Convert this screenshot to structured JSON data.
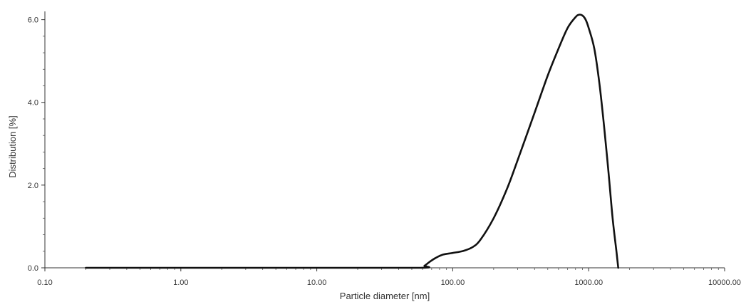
{
  "chart_data": {
    "type": "line",
    "title": "",
    "xlabel": "Particle diameter [nm]",
    "ylabel": "Distribution [%]",
    "x_scale": "log",
    "xlim": [
      0.1,
      10000
    ],
    "ylim": [
      0,
      6.2
    ],
    "x_ticks": [
      {
        "value": 0.1,
        "label": "0.10"
      },
      {
        "value": 1,
        "label": "1.00"
      },
      {
        "value": 10,
        "label": "10.00"
      },
      {
        "value": 100,
        "label": "100.00"
      },
      {
        "value": 1000,
        "label": "1000.00"
      },
      {
        "value": 10000,
        "label": "10000.00"
      }
    ],
    "y_ticks": [
      {
        "value": 0,
        "label": "0.0"
      },
      {
        "value": 2,
        "label": "2.0"
      },
      {
        "value": 4,
        "label": "4.0"
      },
      {
        "value": 6,
        "label": "6.0"
      }
    ],
    "grid": false,
    "legend": "none",
    "series": [
      {
        "color": "#111111",
        "x": [
          0.2,
          1,
          10,
          58,
          62,
          68,
          75,
          85,
          100,
          120,
          140,
          160,
          200,
          250,
          300,
          400,
          500,
          600,
          700,
          800,
          850,
          900,
          950,
          1000,
          1100,
          1200,
          1300,
          1400,
          1500,
          1600,
          1650
        ],
        "y": [
          0,
          0,
          0,
          0,
          0.05,
          0.15,
          0.24,
          0.32,
          0.36,
          0.41,
          0.5,
          0.68,
          1.2,
          1.9,
          2.6,
          3.75,
          4.65,
          5.3,
          5.8,
          6.06,
          6.12,
          6.1,
          6.0,
          5.8,
          5.3,
          4.45,
          3.4,
          2.3,
          1.2,
          0.4,
          0.0
        ]
      }
    ]
  }
}
